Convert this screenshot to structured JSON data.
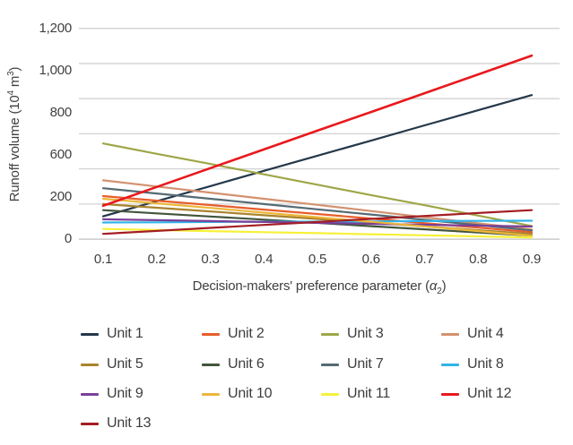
{
  "chart_data": {
    "type": "line",
    "title": "",
    "xlabel_parts": {
      "pre": "Decision-makers' preference parameter (",
      "alpha": "α",
      "sub": "2",
      "post": ")"
    },
    "ylabel_parts": {
      "pre": "Runoff volume (10",
      "sup1": "4",
      "mid": " m",
      "sup2": "3",
      "post": ")"
    },
    "x": [
      0.1,
      0.2,
      0.3,
      0.4,
      0.5,
      0.6,
      0.7,
      0.8,
      0.9
    ],
    "x_tick_labels": [
      "0.1",
      "0.2",
      "0.3",
      "0.4",
      "0.5",
      "0.6",
      "0.7",
      "0.8",
      "0.9"
    ],
    "y_axis": {
      "tick_labels": [
        "1,200",
        "1,000",
        "800",
        "600",
        "200",
        "0"
      ],
      "gridline_values": [
        1200,
        1000,
        800,
        600,
        400,
        200,
        0
      ],
      "ylim": [
        0,
        1200
      ],
      "grid": true
    },
    "legend_position": "bottom",
    "legend_columns": 4,
    "series": [
      {
        "name": "Unit 1",
        "color": "#24384a",
        "values": [
          130,
          216,
          302,
          389,
          475,
          561,
          648,
          734,
          820
        ]
      },
      {
        "name": "Unit 2",
        "color": "#e75d2c",
        "values": [
          245,
          219,
          194,
          168,
          143,
          117,
          91,
          66,
          40
        ]
      },
      {
        "name": "Unit 3",
        "color": "#9fa647",
        "values": [
          545,
          486,
          428,
          369,
          310,
          251,
          193,
          134,
          75
        ]
      },
      {
        "name": "Unit 4",
        "color": "#d3926f",
        "values": [
          335,
          300,
          265,
          230,
          195,
          160,
          125,
          90,
          55
        ]
      },
      {
        "name": "Unit 5",
        "color": "#a9832d",
        "values": [
          200,
          179,
          158,
          136,
          115,
          94,
          73,
          51,
          30
        ]
      },
      {
        "name": "Unit 6",
        "color": "#41553b",
        "values": [
          165,
          147,
          129,
          111,
          93,
          74,
          56,
          38,
          20
        ]
      },
      {
        "name": "Unit 7",
        "color": "#566a73",
        "values": [
          290,
          260,
          230,
          200,
          170,
          140,
          110,
          80,
          50
        ]
      },
      {
        "name": "Unit 8",
        "color": "#30b4e8",
        "values": [
          95,
          96,
          98,
          99,
          100,
          101,
          103,
          104,
          105
        ]
      },
      {
        "name": "Unit 9",
        "color": "#7a3f98",
        "values": [
          113,
          108,
          103,
          98,
          93,
          87,
          82,
          77,
          72
        ]
      },
      {
        "name": "Unit 10",
        "color": "#ecb73a",
        "values": [
          230,
          204,
          178,
          151,
          125,
          99,
          73,
          46,
          20
        ]
      },
      {
        "name": "Unit 11",
        "color": "#f6f138",
        "values": [
          58,
          52,
          46,
          40,
          34,
          28,
          22,
          16,
          10
        ]
      },
      {
        "name": "Unit 12",
        "color": "#e8191d",
        "values": [
          190,
          297,
          404,
          511,
          618,
          724,
          831,
          938,
          1045
        ]
      },
      {
        "name": "Unit 13",
        "color": "#a41d23",
        "values": [
          30,
          47,
          64,
          81,
          98,
          115,
          132,
          149,
          165
        ]
      }
    ]
  },
  "colors": {
    "gridline": "#d2d2d2",
    "axis_line": "#c2c2c2",
    "tick_text": "#3f3f3f",
    "legend_text": "#3d3d3d",
    "background": "#ffffff"
  }
}
